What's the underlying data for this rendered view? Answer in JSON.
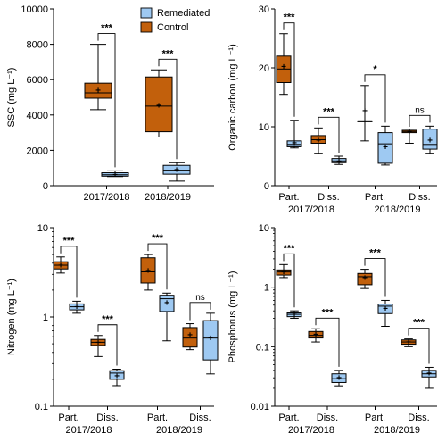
{
  "colors": {
    "control": "#c2600c",
    "remediated": "#9ec9f2",
    "stroke": "#000000"
  },
  "legend": {
    "items": [
      "Remediated",
      "Control"
    ],
    "position": "top-right of SSC panel"
  },
  "chart_data": [
    {
      "id": "ssc",
      "type": "box",
      "scale": "linear",
      "ylabel": "SSC (mg L⁻¹)",
      "ylim": [
        0,
        10000
      ],
      "yticks": [
        "0",
        "2000",
        "4000",
        "6000",
        "8000",
        "10000"
      ],
      "ytick_values": [
        0,
        2000,
        4000,
        6000,
        8000,
        10000
      ],
      "sublabels": [],
      "years": [
        "2017/2018",
        "2018/2019"
      ],
      "boxes": [
        {
          "group": "Control",
          "year": "2017/2018",
          "min": 4300,
          "q1": 4950,
          "median": 5250,
          "q3": 5800,
          "max": 8000,
          "mean": 5400
        },
        {
          "group": "Remediated",
          "year": "2017/2018",
          "min": 520,
          "q1": 540,
          "median": 620,
          "q3": 730,
          "max": 840,
          "mean": 620
        },
        {
          "group": "Control",
          "year": "2018/2019",
          "min": 2750,
          "q1": 3050,
          "median": 4500,
          "q3": 6150,
          "max": 6550,
          "mean": 4550
        },
        {
          "group": "Remediated",
          "year": "2018/2019",
          "min": 260,
          "q1": 650,
          "median": 880,
          "q3": 1150,
          "max": 1300,
          "mean": 900
        }
      ],
      "significance": [
        "***",
        "***"
      ]
    },
    {
      "id": "oc",
      "type": "box",
      "scale": "linear",
      "ylabel": "Organic carbon (mg L⁻¹)",
      "ylim": [
        0,
        30
      ],
      "yticks": [
        "0",
        "10",
        "20",
        "30"
      ],
      "ytick_values": [
        0,
        10,
        20,
        30
      ],
      "sublabels": [
        "Part.",
        "Diss.",
        "Part.",
        "Diss."
      ],
      "years": [
        "2017/2018",
        "2018/2019"
      ],
      "boxes": [
        {
          "group": "Control",
          "year": "2017/2018",
          "fraction": "Part.",
          "min": 15.5,
          "q1": 17.5,
          "median": 19.8,
          "q3": 22.0,
          "max": 25.8,
          "mean": 20.2
        },
        {
          "group": "Remediated",
          "year": "2017/2018",
          "fraction": "Part.",
          "min": 6.4,
          "q1": 6.6,
          "median": 7.0,
          "q3": 7.6,
          "max": 11.1,
          "mean": 7.3
        },
        {
          "group": "Control",
          "year": "2017/2018",
          "fraction": "Diss.",
          "min": 5.5,
          "q1": 7.2,
          "median": 7.8,
          "q3": 8.5,
          "max": 9.8,
          "mean": 7.7
        },
        {
          "group": "Remediated",
          "year": "2017/2018",
          "fraction": "Diss.",
          "min": 3.6,
          "q1": 3.9,
          "median": 4.2,
          "q3": 4.6,
          "max": 5.0,
          "mean": 4.2
        },
        {
          "group": "Control",
          "year": "2018/2019",
          "fraction": "Part.",
          "min": 7.6,
          "q1": 11.0,
          "median": 11.0,
          "q3": 11.0,
          "max": 17.0,
          "mean": 12.7
        },
        {
          "group": "Remediated",
          "year": "2018/2019",
          "fraction": "Part.",
          "min": 3.5,
          "q1": 3.8,
          "median": 7.1,
          "q3": 9.0,
          "max": 10.1,
          "mean": 6.6
        },
        {
          "group": "Control",
          "year": "2018/2019",
          "fraction": "Diss.",
          "min": 7.2,
          "q1": 9.0,
          "median": 9.2,
          "q3": 9.4,
          "max": 9.4,
          "mean": 9.2
        },
        {
          "group": "Remediated",
          "year": "2018/2019",
          "fraction": "Diss.",
          "min": 5.5,
          "q1": 6.2,
          "median": 7.0,
          "q3": 9.6,
          "max": 10.1,
          "mean": 7.7
        }
      ],
      "significance": [
        "***",
        "***",
        "*",
        "ns"
      ]
    },
    {
      "id": "nitrogen",
      "type": "box",
      "scale": "log",
      "ylabel": "Nitrogen (mg L⁻¹)",
      "ylim": [
        0.1,
        10
      ],
      "yticks": [
        "0.1",
        "1",
        "10"
      ],
      "ytick_values": [
        0.1,
        1,
        10
      ],
      "sublabels": [
        "Part.",
        "Diss.",
        "Part.",
        "Diss."
      ],
      "years": [
        "2017/2018",
        "2018/2019"
      ],
      "boxes": [
        {
          "group": "Control",
          "year": "2017/2018",
          "fraction": "Part.",
          "min": 3.1,
          "q1": 3.45,
          "median": 3.8,
          "q3": 4.15,
          "max": 4.7,
          "mean": 3.8
        },
        {
          "group": "Remediated",
          "year": "2017/2018",
          "fraction": "Part.",
          "min": 1.1,
          "q1": 1.2,
          "median": 1.3,
          "q3": 1.4,
          "max": 1.5,
          "mean": 1.3
        },
        {
          "group": "Control",
          "year": "2017/2018",
          "fraction": "Diss.",
          "min": 0.36,
          "q1": 0.48,
          "median": 0.52,
          "q3": 0.56,
          "max": 0.62,
          "mean": 0.52
        },
        {
          "group": "Remediated",
          "year": "2017/2018",
          "fraction": "Diss.",
          "min": 0.17,
          "q1": 0.2,
          "median": 0.235,
          "q3": 0.25,
          "max": 0.26,
          "mean": 0.22
        },
        {
          "group": "Control",
          "year": "2018/2019",
          "fraction": "Part.",
          "min": 2.0,
          "q1": 2.4,
          "median": 3.2,
          "q3": 4.6,
          "max": 5.0,
          "mean": 3.3
        },
        {
          "group": "Remediated",
          "year": "2018/2019",
          "fraction": "Part.",
          "min": 0.54,
          "q1": 1.15,
          "median": 1.6,
          "q3": 1.75,
          "max": 1.85,
          "mean": 1.45
        },
        {
          "group": "Control",
          "year": "2018/2019",
          "fraction": "Diss.",
          "min": 0.43,
          "q1": 0.46,
          "median": 0.58,
          "q3": 0.76,
          "max": 0.84,
          "mean": 0.63
        },
        {
          "group": "Remediated",
          "year": "2018/2019",
          "fraction": "Diss.",
          "min": 0.23,
          "q1": 0.33,
          "median": 0.58,
          "q3": 0.91,
          "max": 1.1,
          "mean": 0.58
        }
      ],
      "significance": [
        "***",
        "***",
        "***",
        "ns"
      ]
    },
    {
      "id": "phosphorus",
      "type": "box",
      "scale": "log",
      "ylabel": "Phosphorus (mg L⁻¹)",
      "ylim": [
        0.01,
        10
      ],
      "yticks": [
        "0.01",
        "0.1",
        "1",
        "10"
      ],
      "ytick_values": [
        0.01,
        0.1,
        1,
        10
      ],
      "sublabels": [
        "Part.",
        "Diss.",
        "Part.",
        "Diss."
      ],
      "years": [
        "2017/2018",
        "2018/2019"
      ],
      "boxes": [
        {
          "group": "Control",
          "year": "2017/2018",
          "fraction": "Part.",
          "min": 1.45,
          "q1": 1.6,
          "median": 1.8,
          "q3": 1.95,
          "max": 2.4,
          "mean": 1.8
        },
        {
          "group": "Remediated",
          "year": "2017/2018",
          "fraction": "Part.",
          "min": 0.3,
          "q1": 0.32,
          "median": 0.35,
          "q3": 0.37,
          "max": 0.4,
          "mean": 0.35
        },
        {
          "group": "Control",
          "year": "2017/2018",
          "fraction": "Diss.",
          "min": 0.12,
          "q1": 0.14,
          "median": 0.155,
          "q3": 0.18,
          "max": 0.2,
          "mean": 0.16
        },
        {
          "group": "Remediated",
          "year": "2017/2018",
          "fraction": "Diss.",
          "min": 0.022,
          "q1": 0.025,
          "median": 0.029,
          "q3": 0.035,
          "max": 0.04,
          "mean": 0.03
        },
        {
          "group": "Control",
          "year": "2018/2019",
          "fraction": "Part.",
          "min": 0.95,
          "q1": 1.1,
          "median": 1.5,
          "q3": 1.7,
          "max": 2.0,
          "mean": 1.45
        },
        {
          "group": "Remediated",
          "year": "2018/2019",
          "fraction": "Part.",
          "min": 0.22,
          "q1": 0.36,
          "median": 0.48,
          "q3": 0.52,
          "max": 0.6,
          "mean": 0.44
        },
        {
          "group": "Control",
          "year": "2018/2019",
          "fraction": "Diss.",
          "min": 0.1,
          "q1": 0.11,
          "median": 0.12,
          "q3": 0.13,
          "max": 0.135,
          "mean": 0.12
        },
        {
          "group": "Remediated",
          "year": "2018/2019",
          "fraction": "Diss.",
          "min": 0.02,
          "q1": 0.031,
          "median": 0.035,
          "q3": 0.04,
          "max": 0.045,
          "mean": 0.036
        }
      ],
      "significance": [
        "***",
        "***",
        "***",
        "***"
      ]
    }
  ]
}
